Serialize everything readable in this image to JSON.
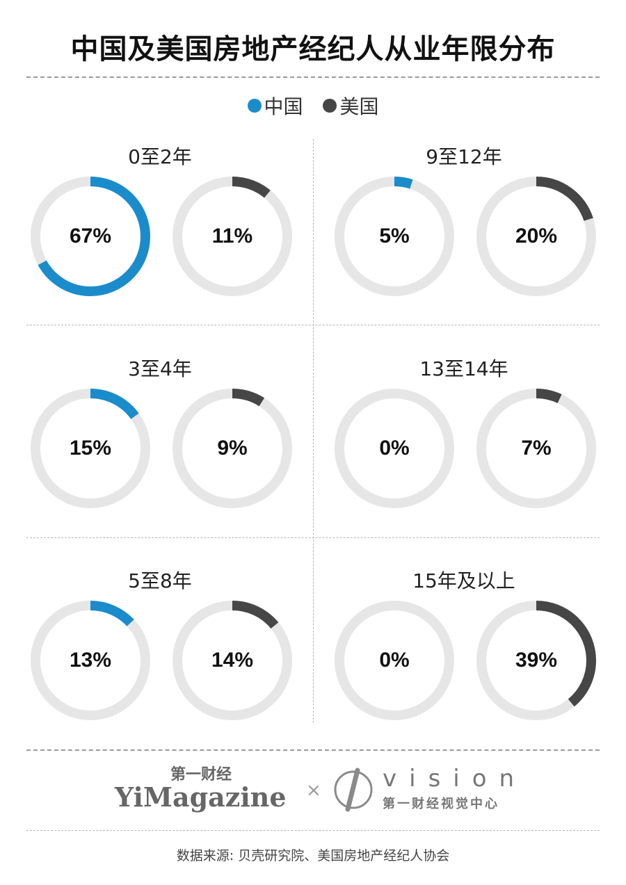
{
  "title": "中国及美国房地产经纪人从业年限分布",
  "legend": [
    {
      "name": "中国",
      "color": "#1a8ccb"
    },
    {
      "name": "美国",
      "color": "#464646"
    }
  ],
  "colors": {
    "china": "#1a8ccb",
    "usa": "#464646",
    "track": "#e6e6e6"
  },
  "chart_data": {
    "type": "donut",
    "title": "中国及美国房地产经纪人从业年限分布",
    "series_names": [
      "中国",
      "美国"
    ],
    "categories": [
      "0至2年",
      "3至4年",
      "5至8年",
      "9至12年",
      "13至14年",
      "15年及以上"
    ],
    "series": [
      {
        "name": "中国",
        "values": [
          67,
          15,
          13,
          5,
          0,
          0
        ]
      },
      {
        "name": "美国",
        "values": [
          11,
          9,
          14,
          20,
          7,
          39
        ]
      }
    ],
    "panels": [
      {
        "label": "0至2年",
        "china": 67,
        "usa": 11,
        "china_text": "67%",
        "usa_text": "11%"
      },
      {
        "label": "9至12年",
        "china": 5,
        "usa": 20,
        "china_text": "5%",
        "usa_text": "20%"
      },
      {
        "label": "3至4年",
        "china": 15,
        "usa": 9,
        "china_text": "15%",
        "usa_text": "9%"
      },
      {
        "label": "13至14年",
        "china": 0,
        "usa": 7,
        "china_text": "0%",
        "usa_text": "7%"
      },
      {
        "label": "5至8年",
        "china": 13,
        "usa": 14,
        "china_text": "13%",
        "usa_text": "14%"
      },
      {
        "label": "15年及以上",
        "china": 0,
        "usa": 39,
        "china_text": "0%",
        "usa_text": "39%"
      }
    ]
  },
  "brand": {
    "yimagazine_cn": "第一财经",
    "yimagazine_en": "YiMagazine",
    "cross": "×",
    "vision_en": "vision",
    "vision_cn": "第一财经视觉中心"
  },
  "source": "数据来源: 贝壳研究院、美国房地产经纪人协会"
}
